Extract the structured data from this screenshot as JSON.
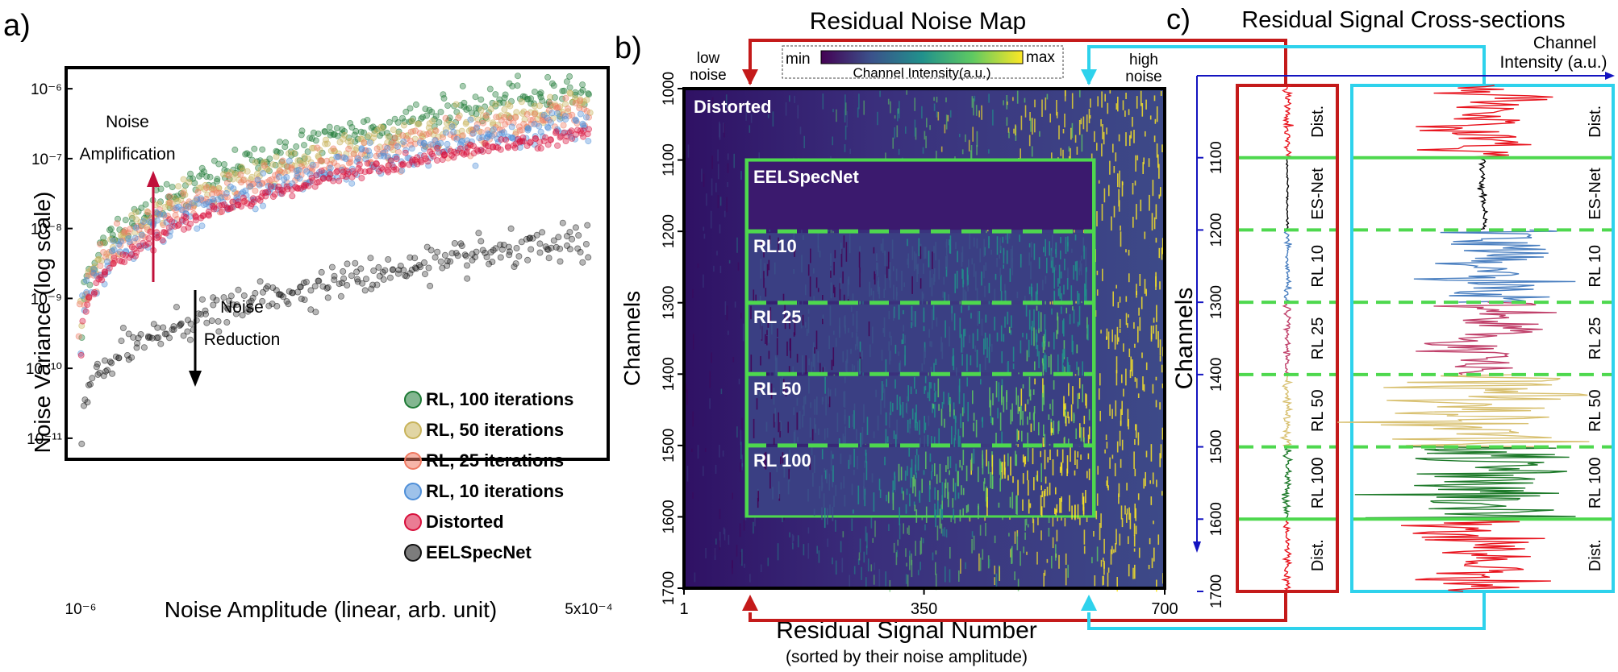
{
  "chart_data": [
    {
      "panel": "a)",
      "type": "scatter",
      "xlabel": "Noise Amplitude (linear, arb. unit)",
      "ylabel": "Noise Variance (log scale)",
      "x_range": [
        1e-06,
        0.0005
      ],
      "x_tick_labels": [
        "10⁻⁶",
        "5x10⁻⁴"
      ],
      "y_scale": "log",
      "y_range": [
        5e-12,
        2e-06
      ],
      "y_tick_labels": [
        "10⁻¹¹",
        "10⁻¹⁰",
        "10⁻⁹",
        "10⁻⁸",
        "10⁻⁷",
        "10⁻⁶"
      ],
      "legend_position": "bottom-right",
      "series": [
        {
          "name": "RL, 100 iterations",
          "color": "#1e7a35",
          "y_at_xmin": 3e-10,
          "y_at_xmax": 1.05e-06
        },
        {
          "name": "RL, 50 iterations",
          "color": "#c8b35a",
          "y_at_xmin": 2.5e-10,
          "y_at_xmax": 6.5e-07
        },
        {
          "name": "RL, 25 iterations",
          "color": "#f07a62",
          "y_at_xmin": 2.1e-10,
          "y_at_xmax": 4.3e-07
        },
        {
          "name": "RL, 10 iterations",
          "color": "#4f8fd8",
          "y_at_xmin": 1.8e-10,
          "y_at_xmax": 3.3e-07
        },
        {
          "name": "Distorted",
          "color": "#d8103c",
          "y_at_xmin": 1.6e-10,
          "y_at_xmax": 2.4e-07
        },
        {
          "name": "EELSpecNet",
          "color": "#111111",
          "y_at_xmin": 9e-12,
          "y_at_xmax": 6.5e-09
        }
      ],
      "annotations": [
        {
          "text": "Noise",
          "color": "#c0103a"
        },
        {
          "text": "Amplification",
          "color": "#c0103a"
        },
        {
          "text": "Noise",
          "color": "#000000"
        },
        {
          "text": "Reduction",
          "color": "#000000"
        }
      ]
    },
    {
      "panel": "b)",
      "type": "heatmap",
      "title": "Residual Noise Map",
      "xlabel": "Residual Signal Number",
      "xlabel_sub": "(sorted by their noise amplitude)",
      "ylabel": "Channels",
      "x_ticks": [
        1,
        350,
        700
      ],
      "y_ticks": [
        1000,
        1100,
        1200,
        1300,
        1400,
        1500,
        1600,
        1700
      ],
      "x_range": [
        1,
        700
      ],
      "y_range": [
        1000,
        1700
      ],
      "colorbar": {
        "min_label": "min",
        "max_label": "max",
        "label": "Channel Intensity(a.u.)",
        "colors": [
          "#440154",
          "#3b528b",
          "#21918c",
          "#5ec962",
          "#fde725"
        ]
      },
      "corner_labels": {
        "left": [
          "low",
          "noise"
        ],
        "right": [
          "high",
          "noise"
        ]
      },
      "regions": [
        {
          "label": "Distorted",
          "channels": [
            1000,
            1700
          ]
        },
        {
          "label": "EELSpecNet",
          "channels": [
            1100,
            1200
          ],
          "intensity": 0.05
        },
        {
          "label": "RL10",
          "channels": [
            1200,
            1300
          ],
          "intensity": 0.35
        },
        {
          "label": "RL 25",
          "channels": [
            1300,
            1400
          ],
          "intensity": 0.5
        },
        {
          "label": "RL 50",
          "channels": [
            1400,
            1500
          ],
          "intensity": 0.75
        },
        {
          "label": "RL 100",
          "channels": [
            1500,
            1600
          ],
          "intensity": 0.9
        }
      ],
      "box_signal_range": [
        150,
        600
      ]
    },
    {
      "panel": "c)",
      "type": "line",
      "title": "Residual Signal Cross-sections",
      "xlabel": "Channel Intensity (a.u.)",
      "ylabel": "Channels",
      "y_ticks": [
        1100,
        1200,
        1300,
        1400,
        1500,
        1600,
        1700
      ],
      "y_range": [
        1000,
        1700
      ],
      "segment_labels": [
        "Dist.",
        "ES-Net",
        "RL 10",
        "RL 25",
        "RL 50",
        "RL 100",
        "Dist."
      ],
      "segments": [
        {
          "label": "Dist.",
          "channels": [
            1000,
            1100
          ],
          "color": "#e8141e",
          "amp_low": 0.08,
          "amp_high": 0.45
        },
        {
          "label": "ES-Net",
          "channels": [
            1100,
            1200
          ],
          "color": "#000000",
          "amp_low": 0.02,
          "amp_high": 0.03
        },
        {
          "label": "RL 10",
          "channels": [
            1200,
            1300
          ],
          "color": "#4a7fc0",
          "amp_low": 0.06,
          "amp_high": 0.5
        },
        {
          "label": "RL 25",
          "channels": [
            1300,
            1400
          ],
          "color": "#c0406a",
          "amp_low": 0.06,
          "amp_high": 0.5
        },
        {
          "label": "RL 50",
          "channels": [
            1400,
            1500
          ],
          "color": "#d8c070",
          "amp_low": 0.07,
          "amp_high": 0.85
        },
        {
          "label": "RL 100",
          "channels": [
            1500,
            1600
          ],
          "color": "#1e7a2a",
          "amp_low": 0.08,
          "amp_high": 0.95
        },
        {
          "label": "Dist.",
          "channels": [
            1600,
            1700
          ],
          "color": "#e8141e",
          "amp_low": 0.08,
          "amp_high": 0.45
        }
      ],
      "columns": [
        {
          "name": "low noise",
          "border_color": "#c41a1a"
        },
        {
          "name": "high noise",
          "border_color": "#2ed2ec"
        }
      ],
      "separator_color": "#4ed84e"
    }
  ]
}
